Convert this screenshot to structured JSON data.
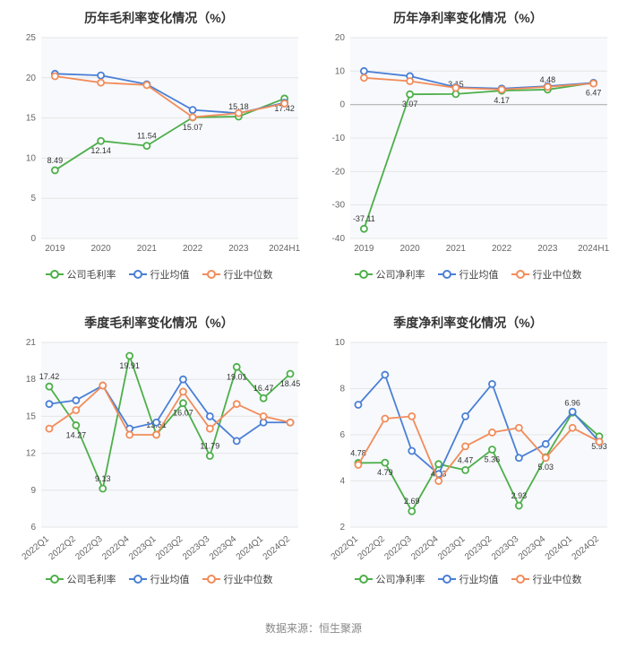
{
  "footer_text": "数据来源：恒生聚源",
  "colors": {
    "series_company": "#4daf4a",
    "series_avg": "#4a7fd6",
    "series_median": "#f28c5a",
    "grid": "#e6e6e6",
    "baseline": "#b0b0b0",
    "axis_text": "#666666",
    "label_text": "#333333",
    "background": "#ffffff",
    "plot_bg_tint": "#f7f9fc"
  },
  "panels": [
    {
      "id": "p1",
      "title": "历年毛利率变化情况（%）",
      "type": "line",
      "x_labels": [
        "2019",
        "2020",
        "2021",
        "2022",
        "2023",
        "2024H1"
      ],
      "x_rotate": 0,
      "ylim": [
        0,
        25
      ],
      "ytick_step": 5,
      "series": [
        {
          "key": "company",
          "name": "公司毛利率",
          "color": "#4daf4a",
          "values": [
            8.49,
            12.14,
            11.54,
            15.07,
            15.18,
            17.42
          ],
          "show_labels": true
        },
        {
          "key": "avg",
          "name": "行业均值",
          "color": "#4a7fd6",
          "values": [
            20.5,
            20.3,
            19.2,
            16.0,
            15.6,
            16.9
          ],
          "show_labels": false
        },
        {
          "key": "median",
          "name": "行业中位数",
          "color": "#f28c5a",
          "values": [
            20.2,
            19.4,
            19.1,
            15.1,
            15.6,
            16.8
          ],
          "show_labels": false
        }
      ],
      "legend": [
        "公司毛利率",
        "行业均值",
        "行业中位数"
      ]
    },
    {
      "id": "p2",
      "title": "历年净利率变化情况（%）",
      "type": "line",
      "x_labels": [
        "2019",
        "2020",
        "2021",
        "2022",
        "2023",
        "2024H1"
      ],
      "x_rotate": 0,
      "ylim": [
        -40,
        20
      ],
      "ytick_step": 10,
      "series": [
        {
          "key": "company",
          "name": "公司净利率",
          "color": "#4daf4a",
          "values": [
            -37.11,
            3.07,
            3.15,
            4.17,
            4.48,
            6.47
          ],
          "show_labels": true
        },
        {
          "key": "avg",
          "name": "行业均值",
          "color": "#4a7fd6",
          "values": [
            10.0,
            8.5,
            5.2,
            4.8,
            5.5,
            6.5
          ],
          "show_labels": false
        },
        {
          "key": "median",
          "name": "行业中位数",
          "color": "#f28c5a",
          "values": [
            8.0,
            7.0,
            5.0,
            4.5,
            5.3,
            6.3
          ],
          "show_labels": false
        }
      ],
      "legend": [
        "公司净利率",
        "行业均值",
        "行业中位数"
      ]
    },
    {
      "id": "p3",
      "title": "季度毛利率变化情况（%）",
      "type": "line",
      "x_labels": [
        "2022Q1",
        "2022Q2",
        "2022Q3",
        "2022Q4",
        "2023Q1",
        "2023Q2",
        "2023Q3",
        "2023Q4",
        "2024Q1",
        "2024Q2"
      ],
      "x_rotate": -40,
      "ylim": [
        6,
        21
      ],
      "ytick_step": 3,
      "series": [
        {
          "key": "company",
          "name": "公司毛利率",
          "color": "#4daf4a",
          "values": [
            17.42,
            14.27,
            9.13,
            19.91,
            13.51,
            16.07,
            11.79,
            19.01,
            16.47,
            18.45
          ],
          "show_labels": true
        },
        {
          "key": "avg",
          "name": "行业均值",
          "color": "#4a7fd6",
          "values": [
            16.0,
            16.3,
            17.5,
            14.0,
            14.5,
            18.0,
            15.0,
            13.0,
            14.5,
            14.5
          ],
          "show_labels": false
        },
        {
          "key": "median",
          "name": "行业中位数",
          "color": "#f28c5a",
          "values": [
            14.0,
            15.5,
            17.5,
            13.5,
            13.5,
            17.0,
            14.0,
            16.0,
            15.0,
            14.5
          ],
          "show_labels": false
        }
      ],
      "legend": [
        "公司毛利率",
        "行业均值",
        "行业中位数"
      ]
    },
    {
      "id": "p4",
      "title": "季度净利率变化情况（%）",
      "type": "line",
      "x_labels": [
        "2022Q1",
        "2022Q2",
        "2022Q3",
        "2022Q4",
        "2023Q1",
        "2023Q2",
        "2023Q3",
        "2023Q4",
        "2024Q1",
        "2024Q2"
      ],
      "x_rotate": -40,
      "ylim": [
        2,
        10
      ],
      "ytick_step": 2,
      "series": [
        {
          "key": "company",
          "name": "公司净利率",
          "color": "#4daf4a",
          "values": [
            4.78,
            4.79,
            2.69,
            4.73,
            4.47,
            5.36,
            2.93,
            5.03,
            6.96,
            5.93
          ],
          "show_labels": true
        },
        {
          "key": "avg",
          "name": "行业均值",
          "color": "#4a7fd6",
          "values": [
            7.3,
            8.6,
            5.3,
            4.3,
            6.8,
            8.2,
            5.0,
            5.6,
            7.0,
            5.7
          ],
          "show_labels": false
        },
        {
          "key": "median",
          "name": "行业中位数",
          "color": "#f28c5a",
          "values": [
            4.7,
            6.7,
            6.8,
            4.0,
            5.5,
            6.1,
            6.3,
            5.0,
            6.3,
            5.7
          ],
          "show_labels": false
        }
      ],
      "legend": [
        "公司净利率",
        "行业均值",
        "行业中位数"
      ]
    }
  ]
}
